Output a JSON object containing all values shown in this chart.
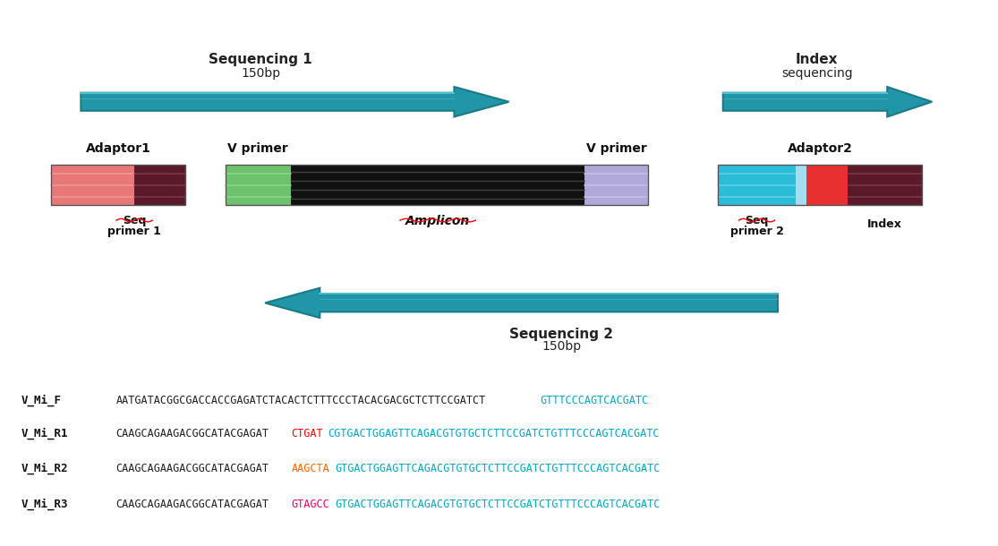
{
  "bg_color": "#ffffff",
  "teal": "#2196A8",
  "teal_dark": "#1a7a85",
  "teal_light": "#4bbfcc",
  "sequences": [
    {
      "label": "V_Mi_F",
      "parts": [
        {
          "text": "AATGATACGGCGACCACCGAGATCTACACTCTTTCCCTACACGACGCTCTTCCGATCT",
          "color": "#222222"
        },
        {
          "text": "GTTTCCCAGTCACGATC",
          "color": "#00AACC"
        }
      ]
    },
    {
      "label": "V_Mi_R1",
      "parts": [
        {
          "text": "CAAGCAGAAGACGGCATACGAGAT",
          "color": "#222222"
        },
        {
          "text": "CTGAT",
          "color": "#FF0000"
        },
        {
          "text": "CGTGACTGGAGTTCAGACGTGTGCTCTTCCGATCTGTTTCCCAGTCACGATC",
          "color": "#00AACC"
        }
      ]
    },
    {
      "label": "V_Mi_R2",
      "parts": [
        {
          "text": "CAAGCAGAAGACGGCATACGAGAT",
          "color": "#222222"
        },
        {
          "text": "AAGCTA",
          "color": "#FF6600"
        },
        {
          "text": "GTGACTGGAGTTCAGACGTGTGCTCTTCCGATCTGTTTCCCAGTCACGATC",
          "color": "#00AACC"
        }
      ]
    },
    {
      "label": "V_Mi_R3",
      "parts": [
        {
          "text": "CAAGCAGAAGACGGCATACGAGAT",
          "color": "#222222"
        },
        {
          "text": "GTAGCC",
          "color": "#FF0066"
        },
        {
          "text": "GTGACTGGAGTTCAGACGTGTGCTCTTCCGATCTGTTTCCCAGTCACGATC",
          "color": "#00AACC"
        }
      ]
    }
  ]
}
